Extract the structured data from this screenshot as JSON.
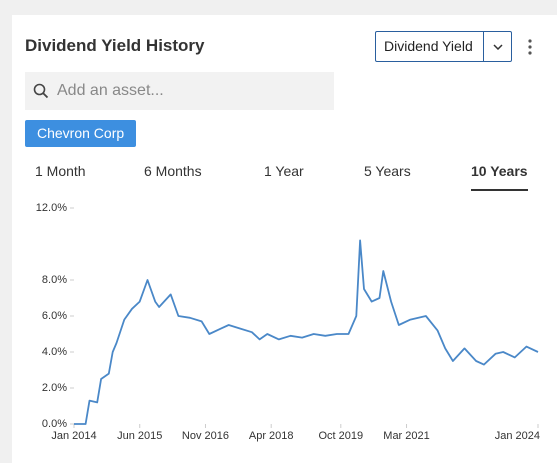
{
  "header": {
    "title": "Dividend Yield History",
    "metric_select": "Dividend Yield"
  },
  "search": {
    "placeholder": "Add an asset..."
  },
  "tabs": [
    "1 Month",
    "6 Months",
    "1 Year",
    "5 Years",
    "10 Years"
  ],
  "active_tab": 4,
  "chart_data": {
    "type": "line",
    "x": [
      "2014-01",
      "2014-04",
      "2014-05",
      "2014-07",
      "2014-08",
      "2014-10",
      "2014-11",
      "2014-12",
      "2015-02",
      "2015-04",
      "2015-06",
      "2015-08",
      "2015-10",
      "2015-11",
      "2016-02",
      "2016-04",
      "2016-07",
      "2016-10",
      "2016-12",
      "2017-03",
      "2017-05",
      "2017-08",
      "2017-11",
      "2018-01",
      "2018-03",
      "2018-06",
      "2018-09",
      "2018-12",
      "2019-03",
      "2019-06",
      "2019-09",
      "2019-12",
      "2020-02",
      "2020-03",
      "2020-04",
      "2020-06",
      "2020-08",
      "2020-09",
      "2020-11",
      "2021-01",
      "2021-04",
      "2021-08",
      "2021-11",
      "2022-01",
      "2022-03",
      "2022-06",
      "2022-09",
      "2022-11",
      "2023-02",
      "2023-04",
      "2023-07",
      "2023-10",
      "2024-01"
    ],
    "series": [
      {
        "name": "Chevron Corp",
        "color": "#4a88c8",
        "values": [
          0,
          0,
          1.3,
          1.2,
          2.5,
          2.8,
          4.0,
          4.5,
          5.8,
          6.4,
          6.8,
          8.0,
          6.8,
          6.5,
          7.2,
          6.0,
          5.9,
          5.7,
          5.0,
          5.3,
          5.5,
          5.3,
          5.1,
          4.7,
          5.0,
          4.7,
          4.9,
          4.8,
          5.0,
          4.9,
          5.0,
          5.0,
          6.0,
          10.2,
          7.5,
          6.8,
          7.0,
          8.5,
          6.8,
          5.5,
          5.8,
          6.0,
          5.2,
          4.2,
          3.5,
          4.2,
          3.5,
          3.3,
          3.9,
          4.0,
          3.7,
          4.3,
          4.0
        ]
      }
    ],
    "xlim": [
      "2014-01",
      "2024-01"
    ],
    "xticks": [
      {
        "value": "2014-01",
        "label": "Jan 2014"
      },
      {
        "value": "2015-06",
        "label": "Jun 2015"
      },
      {
        "value": "2016-11",
        "label": "Nov 2016"
      },
      {
        "value": "2018-04",
        "label": "Apr 2018"
      },
      {
        "value": "2019-10",
        "label": "Oct 2019"
      },
      {
        "value": "2021-03",
        "label": "Mar 2021"
      },
      {
        "value": "2024-01",
        "label": "Jan 2024"
      }
    ],
    "ylim": [
      0,
      12
    ],
    "yticks": [
      {
        "value": 0,
        "label": "0.0%"
      },
      {
        "value": 2,
        "label": "2.0%"
      },
      {
        "value": 4,
        "label": "4.0%"
      },
      {
        "value": 6,
        "label": "6.0%"
      },
      {
        "value": 8,
        "label": "8.0%"
      },
      {
        "value": 12,
        "label": "12.0%"
      }
    ]
  }
}
